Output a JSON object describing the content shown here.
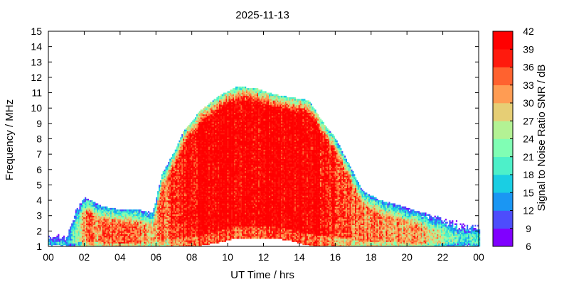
{
  "chart_data": {
    "type": "heatmap",
    "title": "2025-11-13",
    "xlabel": "UT Time / hrs",
    "ylabel": "Frequency / MHz",
    "colorbar_label": "Signal to Noise Ratio SNR / dB",
    "x_tick_labels": [
      "00",
      "02",
      "04",
      "06",
      "08",
      "10",
      "12",
      "14",
      "16",
      "18",
      "20",
      "22",
      "00"
    ],
    "x_tick_hours": [
      0,
      2,
      4,
      6,
      8,
      10,
      12,
      14,
      16,
      18,
      20,
      22,
      24
    ],
    "xlim": [
      0,
      24
    ],
    "y_ticks": [
      1,
      2,
      3,
      4,
      5,
      6,
      7,
      8,
      9,
      10,
      11,
      12,
      13,
      14,
      15
    ],
    "ylim": [
      1,
      15
    ],
    "colorbar_ticks": [
      6,
      9,
      12,
      15,
      18,
      21,
      24,
      27,
      30,
      33,
      36,
      39,
      42
    ],
    "colorbar_range": [
      6,
      42
    ],
    "colorbar_colors": [
      "#8000ff",
      "#4d4dfc",
      "#1a96f3",
      "#1acee3",
      "#4df0c9",
      "#80feb4",
      "#b3f294",
      "#e6ce75",
      "#ff9c53",
      "#ff622f",
      "#ff1a0d",
      "#ff0000"
    ],
    "heatmap_description_profile": {
      "hours": [
        0,
        1,
        1.5,
        2,
        3,
        4,
        5,
        5.8,
        6.3,
        7,
        7.5,
        8.5,
        9.5,
        10.5,
        11.5,
        12.5,
        13.5,
        14.5,
        15.2,
        16,
        16.8,
        17.5,
        18.5,
        19.5,
        20.5,
        21.5,
        22.5,
        24
      ],
      "upper_mhz": [
        2.0,
        2.0,
        3.3,
        4.0,
        3.4,
        3.2,
        3.2,
        3.0,
        5.5,
        7.0,
        8.3,
        9.7,
        10.6,
        11.2,
        11.1,
        10.7,
        10.5,
        10.3,
        9.0,
        7.8,
        6.0,
        4.4,
        3.8,
        3.5,
        3.1,
        2.8,
        2.6,
        2.4
      ],
      "lower_mhz": [
        1.0,
        1.0,
        1.0,
        1.0,
        1.0,
        1.0,
        1.0,
        1.0,
        1.0,
        1.0,
        1.0,
        1.0,
        1.2,
        1.5,
        1.5,
        1.5,
        1.3,
        1.0,
        1.0,
        1.0,
        1.0,
        1.0,
        1.0,
        1.0,
        1.0,
        1.0,
        1.0,
        1.0
      ],
      "peak_snr_db": [
        14,
        16,
        22,
        32,
        35,
        34,
        33,
        30,
        34,
        36,
        39,
        41,
        42,
        42,
        42,
        42,
        42,
        41,
        40,
        37,
        35,
        33,
        33,
        32,
        31,
        28,
        22,
        18
      ]
    }
  }
}
